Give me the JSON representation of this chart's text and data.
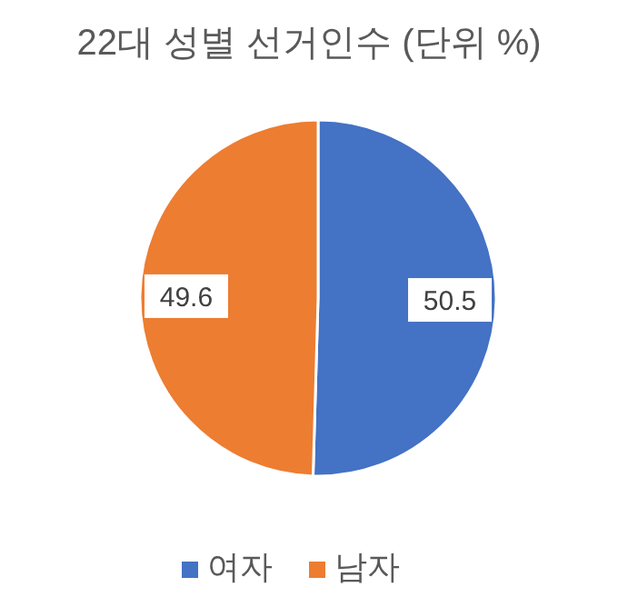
{
  "chart_data": {
    "type": "pie",
    "title": "22대 성별 선거인수 (단위 %)",
    "categories": [
      "여자",
      "남자"
    ],
    "values": [
      50.5,
      49.6
    ],
    "colors": [
      "#4472c4",
      "#ed7d31"
    ],
    "data_labels": true,
    "legend": "bottom"
  }
}
